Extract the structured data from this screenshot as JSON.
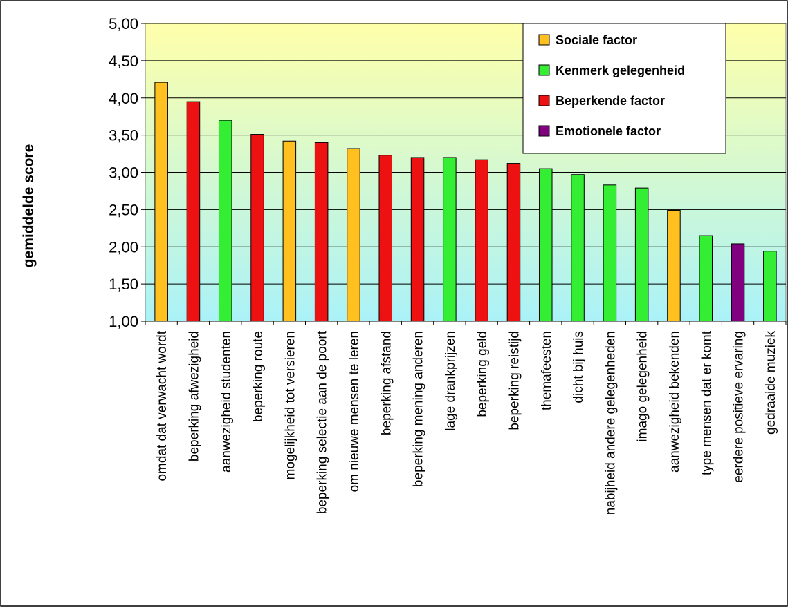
{
  "chart_data": {
    "type": "bar",
    "title": "",
    "xlabel": "",
    "ylabel": "gemiddelde score",
    "ylim": [
      1.0,
      5.0
    ],
    "yticks": [
      "1,00",
      "1,50",
      "2,00",
      "2,50",
      "3,00",
      "3,50",
      "4,00",
      "4,50",
      "5,00"
    ],
    "grid": true,
    "legend_position": "top-right",
    "legend": [
      {
        "name": "Sociale factor",
        "color": "#FFC020"
      },
      {
        "name": "Kenmerk gelegenheid",
        "color": "#33EE33"
      },
      {
        "name": "Beperkende factor",
        "color": "#EE1111"
      },
      {
        "name": "Emotionele factor",
        "color": "#800080"
      }
    ],
    "categories": [
      "omdat dat verwacht wordt",
      "beperking afwezigheid",
      "aanwezigheid studenten",
      "beperking route",
      "mogelijkheid tot versieren",
      "beperking selectie aan de poort",
      "om nieuwe mensen te leren",
      "beperking afstand",
      "beperking mening anderen",
      "lage drankprijzen",
      "beperking geld",
      "beperking reistijd",
      "themafeesten",
      "dicht bij huis",
      "nabijheid andere gelegenheden",
      "imago gelegenheid",
      "aanwezigheid bekenden",
      "type mensen dat er komt",
      "eerdere positieve ervaring",
      "gedraaide muziek"
    ],
    "values": [
      4.21,
      3.95,
      3.7,
      3.51,
      3.42,
      3.4,
      3.32,
      3.23,
      3.2,
      3.2,
      3.17,
      3.12,
      3.05,
      2.97,
      2.83,
      2.79,
      2.49,
      2.15,
      2.04,
      1.94
    ],
    "groups": [
      "Sociale factor",
      "Beperkende factor",
      "Kenmerk gelegenheid",
      "Beperkende factor",
      "Sociale factor",
      "Beperkende factor",
      "Sociale factor",
      "Beperkende factor",
      "Beperkende factor",
      "Kenmerk gelegenheid",
      "Beperkende factor",
      "Beperkende factor",
      "Kenmerk gelegenheid",
      "Kenmerk gelegenheid",
      "Kenmerk gelegenheid",
      "Kenmerk gelegenheid",
      "Sociale factor",
      "Kenmerk gelegenheid",
      "Emotionele factor",
      "Kenmerk gelegenheid"
    ],
    "plot_background_gradient": [
      "#FFFFAA",
      "#AAF2F8"
    ]
  }
}
